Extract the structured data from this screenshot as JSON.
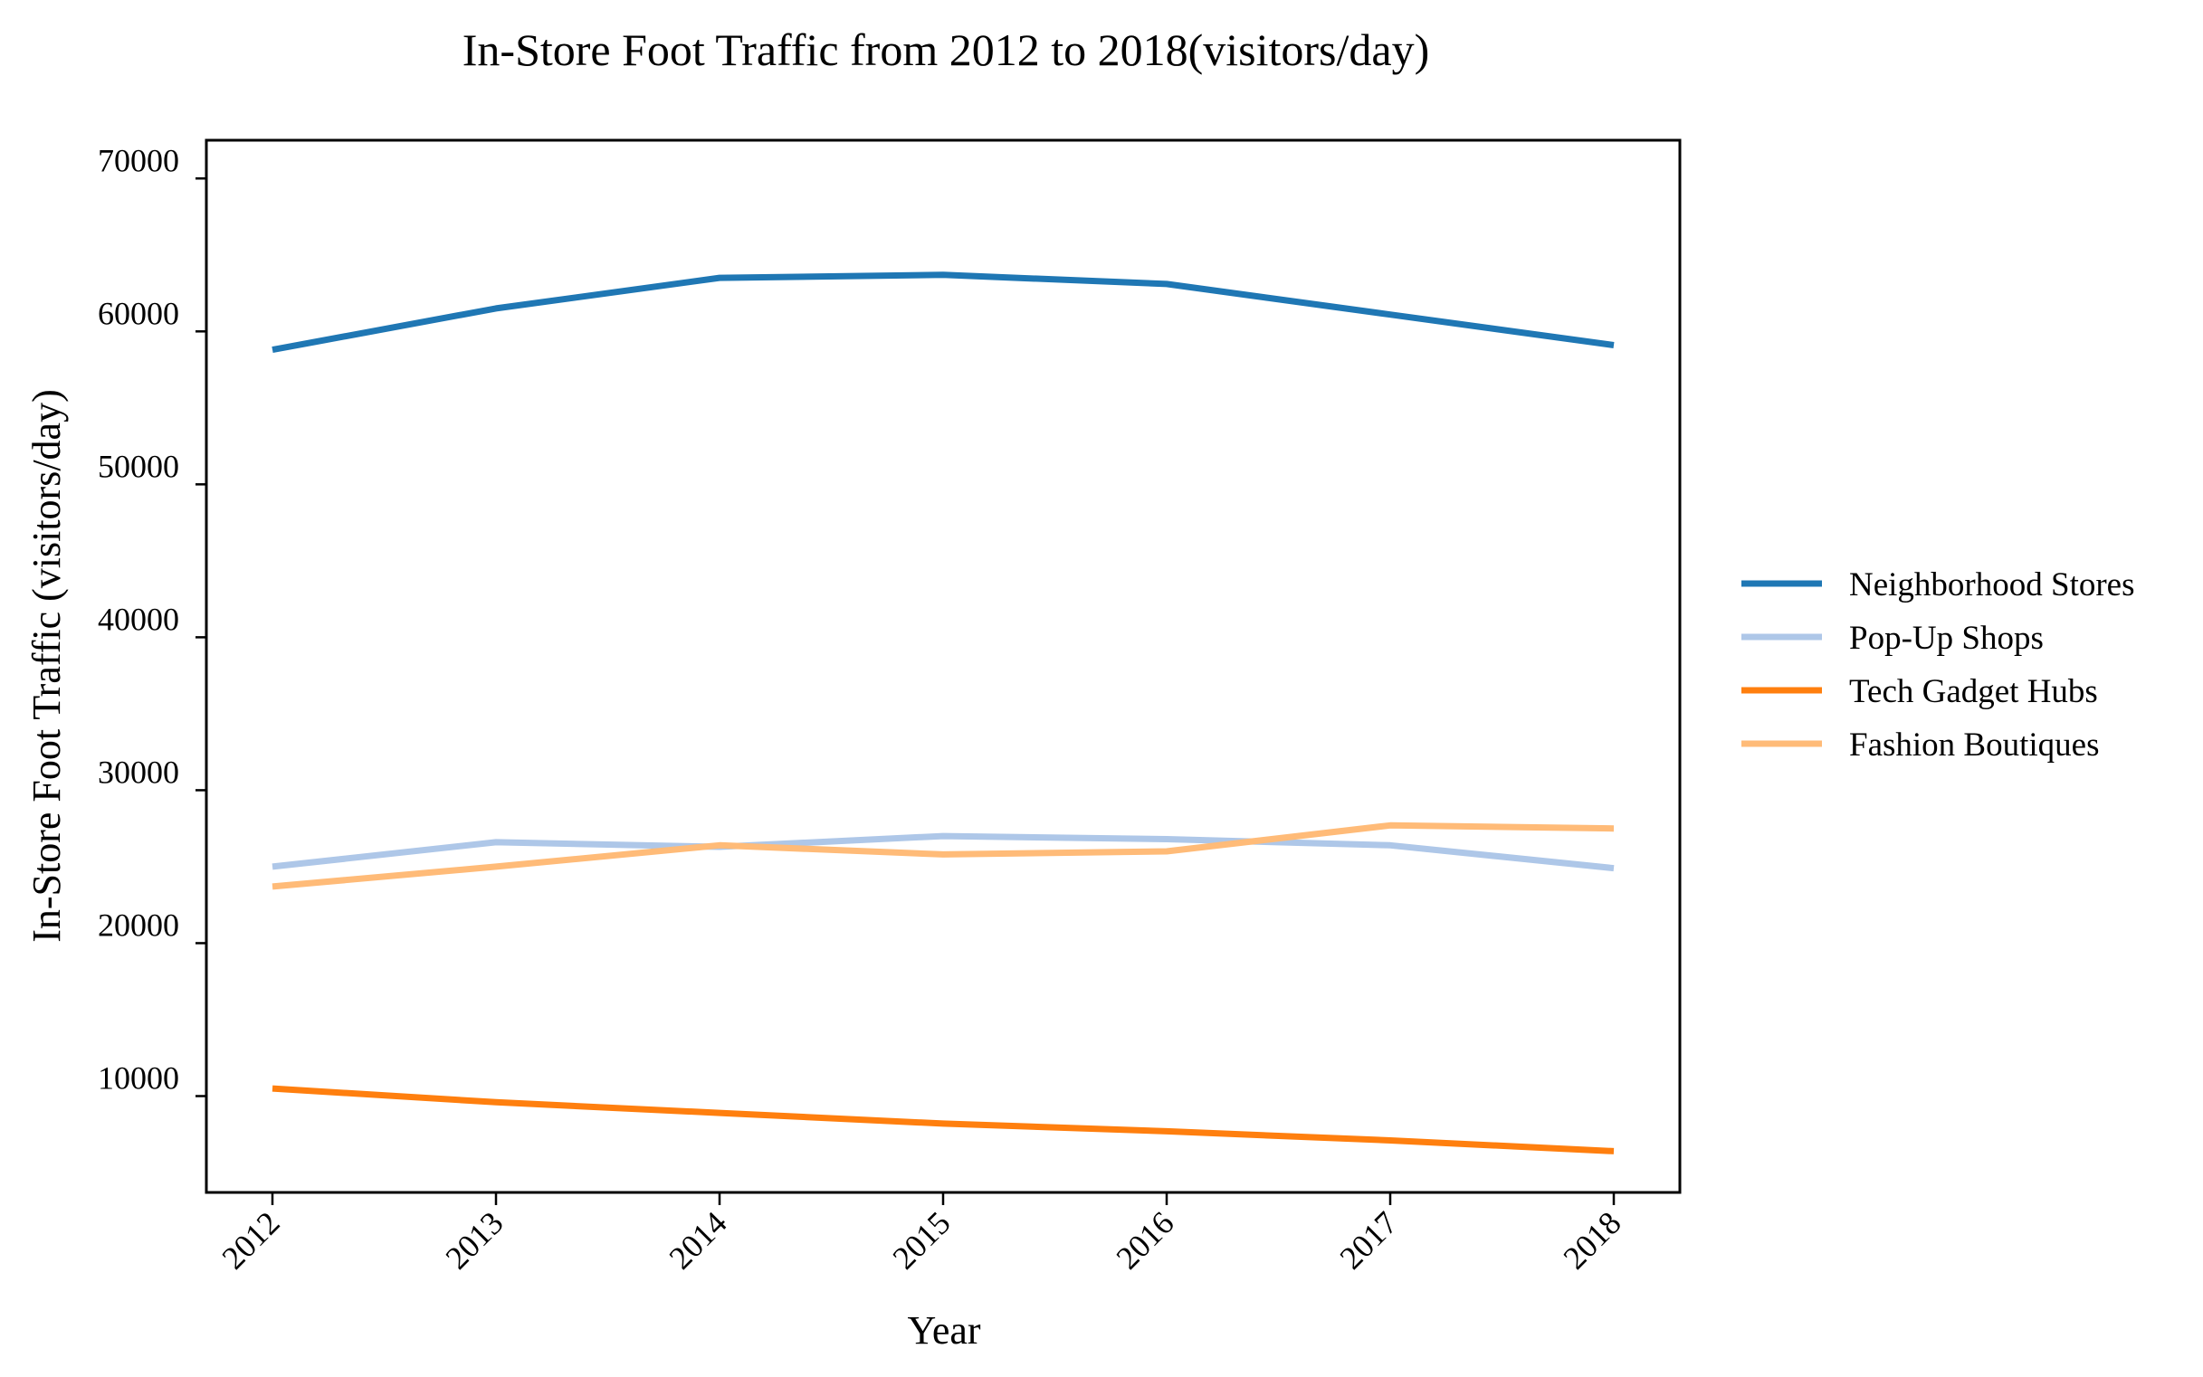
{
  "chart_data": {
    "type": "line",
    "title": "In-Store Foot Traffic from 2012 to 2018(visitors/day)",
    "xlabel": "Year",
    "ylabel": "In-Store Foot Traffic (visitors/day)",
    "categories": [
      "2012",
      "2013",
      "2014",
      "2015",
      "2016",
      "2017",
      "2018"
    ],
    "yticks": [
      10000,
      20000,
      30000,
      40000,
      50000,
      60000,
      70000
    ],
    "ylim": [
      3700,
      72500
    ],
    "grid": false,
    "legend_position": "right",
    "series": [
      {
        "name": "Neighborhood Stores",
        "color": "#1f77b4",
        "values": [
          58800,
          61500,
          63500,
          63700,
          63100,
          61100,
          59100
        ]
      },
      {
        "name": "Pop-Up Shops",
        "color": "#aec7e8",
        "values": [
          25000,
          26600,
          26300,
          27000,
          26800,
          26400,
          24900
        ]
      },
      {
        "name": "Tech Gadget Hubs",
        "color": "#ff7f0e",
        "values": [
          10500,
          9600,
          8900,
          8200,
          7700,
          7100,
          6400
        ]
      },
      {
        "name": "Fashion Boutiques",
        "color": "#ffbb78",
        "values": [
          23700,
          25000,
          26400,
          25800,
          26000,
          27700,
          27500
        ]
      }
    ]
  }
}
